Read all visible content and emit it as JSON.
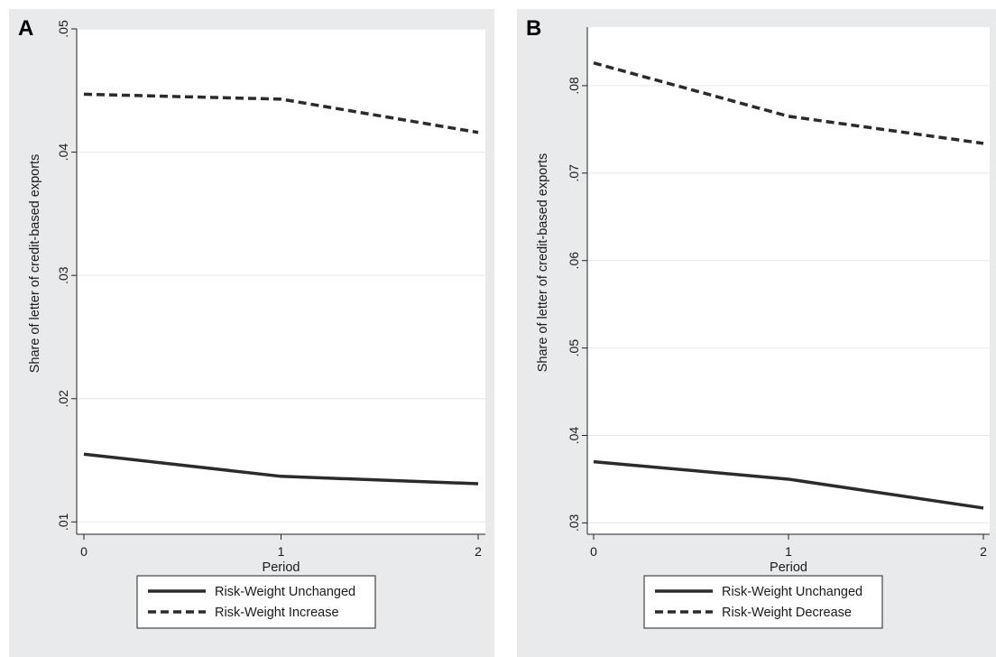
{
  "chart_data": [
    {
      "panel": "A",
      "type": "line",
      "xlabel": "Period",
      "ylabel": "Share of letter of credit-based exports",
      "x": [
        0,
        1,
        2
      ],
      "xticks": [
        "0",
        "1",
        "2"
      ],
      "ylim": [
        0.009,
        0.05
      ],
      "yticks": [
        0.01,
        0.02,
        0.03,
        0.04,
        0.05
      ],
      "ytick_labels": [
        ".01",
        ".02",
        ".03",
        ".04",
        ".05"
      ],
      "grid": true,
      "legend_position": "bottom",
      "series": [
        {
          "name": "Risk-Weight Unchanged",
          "style": "solid",
          "values": [
            0.0155,
            0.0137,
            0.0131
          ]
        },
        {
          "name": "Risk-Weight Increase",
          "style": "dashed",
          "values": [
            0.0447,
            0.0443,
            0.0416
          ]
        }
      ]
    },
    {
      "panel": "B",
      "type": "line",
      "xlabel": "Period",
      "ylabel": "Share of letter of credit-based exports",
      "x": [
        0,
        1,
        2
      ],
      "xticks": [
        "0",
        "1",
        "2"
      ],
      "ylim": [
        0.0287,
        0.0867
      ],
      "yticks": [
        0.03,
        0.04,
        0.05,
        0.06,
        0.07,
        0.08
      ],
      "ytick_labels": [
        ".03",
        ".04",
        ".05",
        ".06",
        ".07",
        ".08"
      ],
      "grid": true,
      "legend_position": "bottom",
      "series": [
        {
          "name": "Risk-Weight Unchanged",
          "style": "solid",
          "values": [
            0.037,
            0.035,
            0.0317
          ]
        },
        {
          "name": "Risk-Weight Decrease",
          "style": "dashed",
          "values": [
            0.0826,
            0.0765,
            0.0734
          ]
        }
      ]
    }
  ],
  "colors": {
    "panel_background": "#e8eaeb",
    "plot_background": "#ffffff",
    "gridline": "#e6e6e6",
    "series": "#2b2b2b"
  }
}
